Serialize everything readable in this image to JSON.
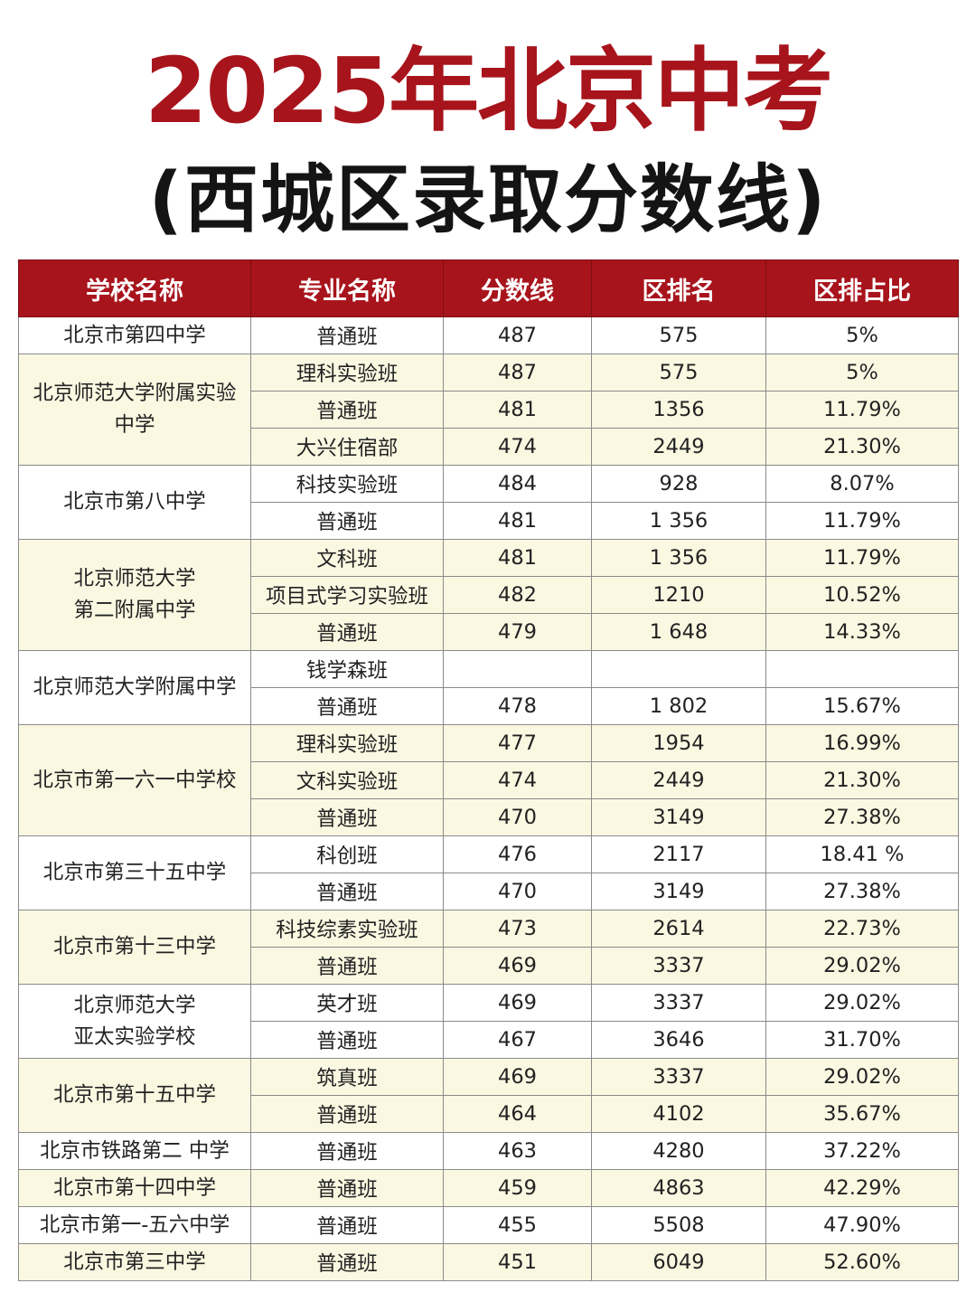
{
  "title": {
    "line1": "2025年北京中考",
    "line2": "(西城区录取分数线)"
  },
  "colors": {
    "header_bg": "#a8141c",
    "title_red": "#a8141c",
    "row_alt_bg": "#fbf8e2",
    "row_bg": "#ffffff"
  },
  "headers": [
    "学校名称",
    "专业名称",
    "分数线",
    "区排名",
    "区排占比"
  ],
  "schools": [
    {
      "name": [
        "北京市第四中学"
      ],
      "rows": [
        {
          "major": "普通班",
          "score": "487",
          "rank": "575",
          "pct": "5%"
        }
      ]
    },
    {
      "name": [
        "北京师范大学附属实验",
        "中学"
      ],
      "rows": [
        {
          "major": "理科实验班",
          "score": "487",
          "rank": "575",
          "pct": "5%"
        },
        {
          "major": "普通班",
          "score": "481",
          "rank": "1356",
          "pct": "11.79%"
        },
        {
          "major": "大兴住宿部",
          "score": "474",
          "rank": "2449",
          "pct": "21.30%"
        }
      ]
    },
    {
      "name": [
        "北京市第八中学"
      ],
      "rows": [
        {
          "major": "科技实验班",
          "score": "484",
          "rank": "928",
          "pct": "8.07%"
        },
        {
          "major": "普通班",
          "score": "481",
          "rank": "1 356",
          "pct": "11.79%"
        }
      ]
    },
    {
      "name": [
        "北京师范大学",
        "第二附属中学"
      ],
      "rows": [
        {
          "major": "文科班",
          "score": "481",
          "rank": "1 356",
          "pct": "11.79%"
        },
        {
          "major": "项目式学习实验班",
          "score": "482",
          "rank": "1210",
          "pct": "10.52%"
        },
        {
          "major": "普通班",
          "score": "479",
          "rank": "1 648",
          "pct": "14.33%"
        }
      ]
    },
    {
      "name": [
        "北京师范大学附属中学"
      ],
      "rows": [
        {
          "major": "钱学森班",
          "score": "",
          "rank": "",
          "pct": ""
        },
        {
          "major": "普通班",
          "score": "478",
          "rank": "1 802",
          "pct": "15.67%"
        }
      ]
    },
    {
      "name": [
        "北京市第一六一中学校"
      ],
      "rows": [
        {
          "major": "理科实验班",
          "score": "477",
          "rank": "1954",
          "pct": "16.99%"
        },
        {
          "major": "文科实验班",
          "score": "474",
          "rank": "2449",
          "pct": "21.30%"
        },
        {
          "major": "普通班",
          "score": "470",
          "rank": "3149",
          "pct": "27.38%"
        }
      ]
    },
    {
      "name": [
        "北京市第三十五中学"
      ],
      "rows": [
        {
          "major": "科创班",
          "score": "476",
          "rank": "2117",
          "pct": "18.41 %"
        },
        {
          "major": "普通班",
          "score": "470",
          "rank": "3149",
          "pct": "27.38%"
        }
      ]
    },
    {
      "name": [
        "北京市第十三中学"
      ],
      "rows": [
        {
          "major": "科技综素实验班",
          "score": "473",
          "rank": "2614",
          "pct": "22.73%"
        },
        {
          "major": "普通班",
          "score": "469",
          "rank": "3337",
          "pct": "29.02%"
        }
      ]
    },
    {
      "name": [
        "北京师范大学",
        "亚太实验学校"
      ],
      "rows": [
        {
          "major": "英才班",
          "score": "469",
          "rank": "3337",
          "pct": "29.02%"
        },
        {
          "major": "普通班",
          "score": "467",
          "rank": "3646",
          "pct": "31.70%"
        }
      ]
    },
    {
      "name": [
        "北京市第十五中学"
      ],
      "rows": [
        {
          "major": "筑真班",
          "score": "469",
          "rank": "3337",
          "pct": "29.02%"
        },
        {
          "major": "普通班",
          "score": "464",
          "rank": "4102",
          "pct": "35.67%"
        }
      ]
    },
    {
      "name": [
        "北京市铁路第二 中学"
      ],
      "rows": [
        {
          "major": "普通班",
          "score": "463",
          "rank": "4280",
          "pct": "37.22%"
        }
      ]
    },
    {
      "name": [
        "北京市第十四中学"
      ],
      "rows": [
        {
          "major": "普通班",
          "score": "459",
          "rank": "4863",
          "pct": "42.29%"
        }
      ]
    },
    {
      "name": [
        "北京市第一-五六中学"
      ],
      "rows": [
        {
          "major": "普通班",
          "score": "455",
          "rank": "5508",
          "pct": "47.90%"
        }
      ]
    },
    {
      "name": [
        "北京市第三中学"
      ],
      "rows": [
        {
          "major": "普通班",
          "score": "451",
          "rank": "6049",
          "pct": "52.60%"
        }
      ]
    }
  ]
}
